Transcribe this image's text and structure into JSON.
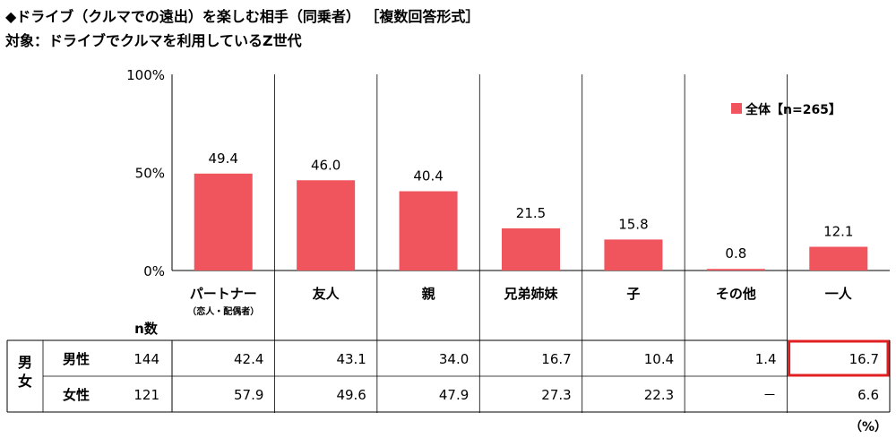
{
  "title": "◆ドライブ（クルマでの遠出）を楽しむ相手（同乗者） ［複数回答形式］",
  "subtitle": "対象：ドライブでクルマを利用しているZ世代",
  "chart_data": {
    "type": "bar",
    "categories": [
      "パートナー",
      "友人",
      "親",
      "兄弟姉妹",
      "子",
      "その他",
      "一人"
    ],
    "category_notes": [
      "（恋人・配偶者）",
      "",
      "",
      "",
      "",
      "",
      ""
    ],
    "series": [
      {
        "name": "全体【n=265】",
        "values": [
          49.4,
          46.0,
          40.4,
          21.5,
          15.8,
          0.8,
          12.1
        ],
        "color": "#f0545c"
      }
    ],
    "value_labels": [
      "49.4",
      "46.0",
      "40.4",
      "21.5",
      "15.8",
      "0.8",
      "12.1"
    ],
    "ylim": [
      0,
      100
    ],
    "yticks": [
      "100%",
      "50%",
      "0%"
    ],
    "legend": "top-right",
    "grid": false
  },
  "table": {
    "n_header": "n数",
    "group_label": "男女",
    "rows": [
      {
        "label": "男性",
        "n": "144",
        "values": [
          "42.4",
          "43.1",
          "34.0",
          "16.7",
          "10.4",
          "1.4",
          "16.7"
        ],
        "highlight": 6
      },
      {
        "label": "女性",
        "n": "121",
        "values": [
          "57.9",
          "49.6",
          "47.9",
          "27.3",
          "22.3",
          "－",
          "6.6"
        ],
        "highlight": -1
      }
    ],
    "unit": "（%）"
  },
  "colors": {
    "bar": "#f0545c",
    "highlight_border": "#e02020",
    "axis": "#000000",
    "divider": "#000000"
  }
}
